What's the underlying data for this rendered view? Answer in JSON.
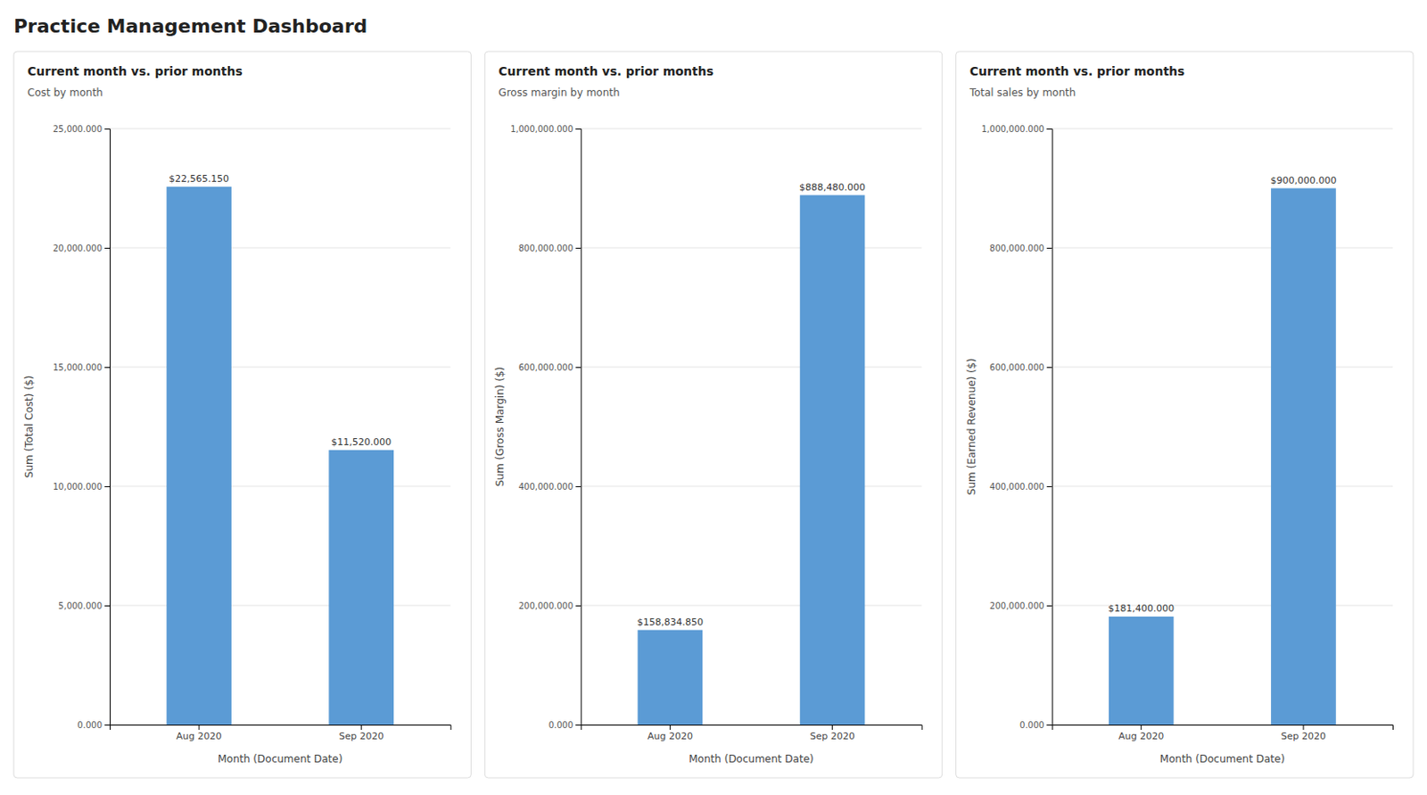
{
  "title": "Practice Management Dashboard",
  "chart_data": [
    {
      "type": "bar",
      "title": "Current month vs. prior months",
      "subtitle": "Cost by month",
      "x_label": "Month (Document Date)",
      "y_label": "Sum (Total Cost) ($)",
      "categories": [
        "Aug 2020",
        "Sep 2020"
      ],
      "values": [
        22565150,
        11520000
      ],
      "value_labels": [
        "$22,565.150",
        "$11,520.000"
      ],
      "data_labels": true,
      "color": "#5b9bd5",
      "ylim": [
        0,
        25000000
      ],
      "yticks": [
        {
          "value": 0,
          "label": "0.000"
        },
        {
          "value": 5000000,
          "label": "5,000.000"
        },
        {
          "value": 10000000,
          "label": "10,000.000"
        },
        {
          "value": 15000000,
          "label": "15,000.000"
        },
        {
          "value": 20000000,
          "label": "20,000.000"
        },
        {
          "value": 25000000,
          "label": "25,000.000"
        }
      ],
      "grid": true
    },
    {
      "type": "bar",
      "title": "Current month vs. prior months",
      "subtitle": "Gross margin by month",
      "x_label": "Month (Document Date)",
      "y_label": "Sum (Gross Margin) ($)",
      "categories": [
        "Aug 2020",
        "Sep 2020"
      ],
      "values": [
        158834850,
        888480000
      ],
      "value_labels": [
        "$158,834.850",
        "$888,480.000"
      ],
      "data_labels": true,
      "color": "#5b9bd5",
      "ylim": [
        0,
        1000000000
      ],
      "yticks": [
        {
          "value": 0,
          "label": "0.000"
        },
        {
          "value": 200000000,
          "label": "200,000.000"
        },
        {
          "value": 400000000,
          "label": "400,000.000"
        },
        {
          "value": 600000000,
          "label": "600,000.000"
        },
        {
          "value": 800000000,
          "label": "800,000.000"
        },
        {
          "value": 1000000000,
          "label": "1,000,000.000"
        }
      ],
      "grid": true
    },
    {
      "type": "bar",
      "title": "Current month vs. prior months",
      "subtitle": "Total sales by month",
      "x_label": "Month (Document Date)",
      "y_label": "Sum (Earned Revenue) ($)",
      "categories": [
        "Aug 2020",
        "Sep 2020"
      ],
      "values": [
        181400000,
        900000000
      ],
      "value_labels": [
        "$181,400.000",
        "$900,000.000"
      ],
      "data_labels": true,
      "color": "#5b9bd5",
      "ylim": [
        0,
        1000000000
      ],
      "yticks": [
        {
          "value": 0,
          "label": "0.000"
        },
        {
          "value": 200000000,
          "label": "200,000.000"
        },
        {
          "value": 400000000,
          "label": "400,000.000"
        },
        {
          "value": 600000000,
          "label": "600,000.000"
        },
        {
          "value": 800000000,
          "label": "800,000.000"
        },
        {
          "value": 1000000000,
          "label": "1,000,000.000"
        }
      ],
      "grid": true
    }
  ]
}
